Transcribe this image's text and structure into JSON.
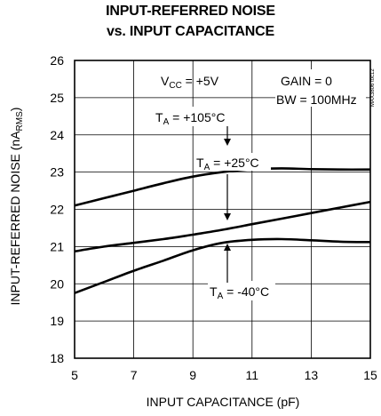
{
  "chart_data": {
    "type": "line",
    "title_line1": "INPUT-REFERRED NOISE",
    "title_line2": "vs. INPUT CAPACITANCE",
    "xlabel": "INPUT CAPACITANCE (pF)",
    "ylabel": {
      "main": "INPUT-REFERRED NOISE (nA",
      "sub": "RMS",
      "close": ")"
    },
    "xlim": [
      5,
      15
    ],
    "ylim": [
      18,
      26
    ],
    "xticks": [
      5,
      7,
      9,
      11,
      13,
      15
    ],
    "yticks": [
      18,
      19,
      20,
      21,
      22,
      23,
      24,
      25,
      26
    ],
    "grid": true,
    "annotations": {
      "vcc": {
        "main": "V",
        "sub": "CC",
        "rest": " = +5V"
      },
      "gain": "GAIN = 0",
      "bw": "BW = 100MHz",
      "part": "MAX3806 toc12"
    },
    "series": [
      {
        "label": {
          "main": "T",
          "sub": "A",
          "rest": " = +105°C"
        },
        "x": [
          5,
          6,
          7,
          8,
          9,
          10,
          11,
          12,
          13,
          14,
          15
        ],
        "y": [
          22.1,
          22.3,
          22.5,
          22.7,
          22.88,
          23.0,
          23.08,
          23.1,
          23.08,
          23.07,
          23.07
        ]
      },
      {
        "label": {
          "main": "T",
          "sub": "A",
          "rest": " = +25°C"
        },
        "x": [
          5,
          6,
          7,
          8,
          9,
          10,
          11,
          12,
          13,
          14,
          15
        ],
        "y": [
          20.87,
          21.0,
          21.1,
          21.2,
          21.32,
          21.45,
          21.6,
          21.75,
          21.9,
          22.05,
          22.2
        ]
      },
      {
        "label": {
          "main": "T",
          "sub": "A",
          "rest": " = -40°C"
        },
        "x": [
          5,
          6,
          7,
          8,
          9,
          10,
          11,
          12,
          13,
          14,
          15
        ],
        "y": [
          19.75,
          20.05,
          20.35,
          20.62,
          20.9,
          21.1,
          21.18,
          21.2,
          21.17,
          21.13,
          21.12
        ]
      }
    ]
  }
}
